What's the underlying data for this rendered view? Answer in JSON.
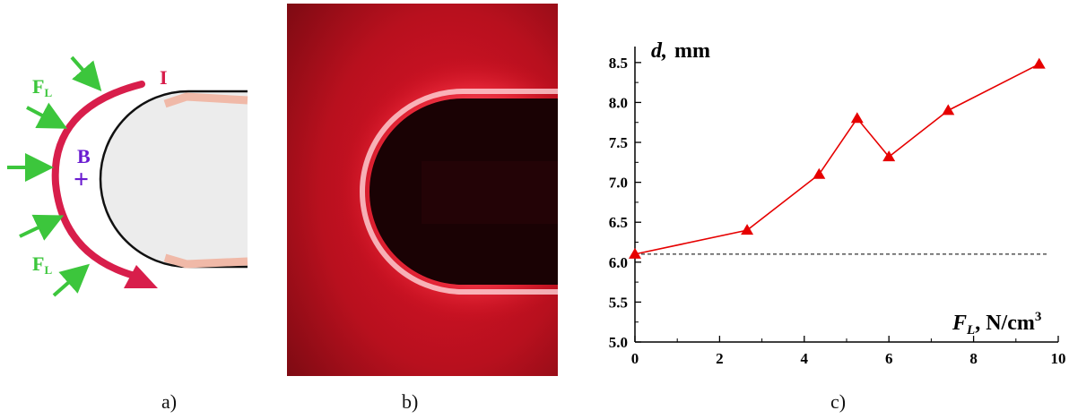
{
  "panels": {
    "a": {
      "caption": "a)",
      "labels": {
        "current": "I",
        "field": "B",
        "field_symbol": "+",
        "force_main": "F",
        "force_sub": "L"
      }
    },
    "b": {
      "caption": "b)"
    },
    "c": {
      "caption": "c)"
    }
  },
  "colors": {
    "current_arrow": "#d81e4b",
    "force_arrows": "#3cc63c",
    "field_label": "#6a1bd0",
    "plasma_red": "#d0101e",
    "series_line": "#e60000",
    "dashed_line": "#000000"
  },
  "chart_data": {
    "type": "line",
    "y_axis_label_var": "d,",
    "y_axis_label_unit": "mm",
    "x_axis_label_var": "F",
    "x_axis_label_sub": "L",
    "x_axis_label_unit": "N/cm",
    "x_axis_label_exp": "3",
    "xlim": [
      0,
      10
    ],
    "ylim": [
      5.0,
      8.7
    ],
    "x_ticks": [
      "0",
      "2",
      "4",
      "6",
      "8",
      "10"
    ],
    "y_ticks": [
      "5.0",
      "5.5",
      "6.0",
      "6.5",
      "7.0",
      "7.5",
      "8.0",
      "8.5"
    ],
    "x_tick_values": [
      0,
      2,
      4,
      6,
      8,
      10
    ],
    "y_tick_values": [
      5.0,
      5.5,
      6.0,
      6.5,
      7.0,
      7.5,
      8.0,
      8.5
    ],
    "series": [
      {
        "marker": "triangle",
        "x": [
          0,
          2.65,
          4.35,
          5.25,
          6.0,
          7.4,
          9.55
        ],
        "y": [
          6.1,
          6.4,
          7.1,
          7.8,
          7.32,
          7.9,
          8.48
        ]
      }
    ],
    "reference_line": {
      "style": "dashed",
      "y": 6.1
    },
    "grid": false
  }
}
